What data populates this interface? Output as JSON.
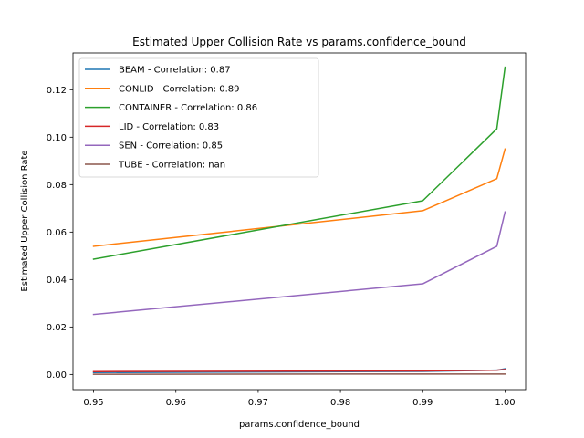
{
  "chart_data": {
    "type": "line",
    "title": "Estimated Upper Collision Rate vs params.confidence_bound",
    "xlabel": "params.confidence_bound",
    "ylabel": "Estimated Upper Collision Rate",
    "x": [
      0.95,
      0.99,
      0.999,
      1.0
    ],
    "xlim": [
      0.9475,
      1.0025
    ],
    "ylim": [
      -0.0064,
      0.1355
    ],
    "xticks": [
      "0.95",
      "0.96",
      "0.97",
      "0.98",
      "0.99",
      "1.00"
    ],
    "xtick_values": [
      0.95,
      0.96,
      0.97,
      0.98,
      0.99,
      1.0
    ],
    "yticks": [
      "0.00",
      "0.02",
      "0.04",
      "0.06",
      "0.08",
      "0.10",
      "0.12"
    ],
    "ytick_values": [
      0.0,
      0.02,
      0.04,
      0.06,
      0.08,
      0.1,
      0.12
    ],
    "grid": false,
    "legend_position": "top-left",
    "series": [
      {
        "name": "BEAM - Correlation: 0.87",
        "color": "#1f77b4",
        "values": [
          0.0008,
          0.0013,
          0.0018,
          0.0024
        ]
      },
      {
        "name": "CONLID - Correlation: 0.89",
        "color": "#ff7f0e",
        "values": [
          0.054,
          0.069,
          0.0825,
          0.095
        ]
      },
      {
        "name": "CONTAINER - Correlation: 0.86",
        "color": "#2ca02c",
        "values": [
          0.0486,
          0.0732,
          0.1035,
          0.1295
        ]
      },
      {
        "name": "LID - Correlation: 0.83",
        "color": "#d62728",
        "values": [
          0.0012,
          0.0015,
          0.0018,
          0.0021
        ]
      },
      {
        "name": "SEN - Correlation: 0.85",
        "color": "#9467bd",
        "values": [
          0.0253,
          0.0382,
          0.054,
          0.0685
        ]
      },
      {
        "name": "TUBE - Correlation: nan",
        "color": "#8c564b",
        "values": [
          0.0001,
          0.0002,
          0.0002,
          0.0002
        ]
      }
    ]
  }
}
